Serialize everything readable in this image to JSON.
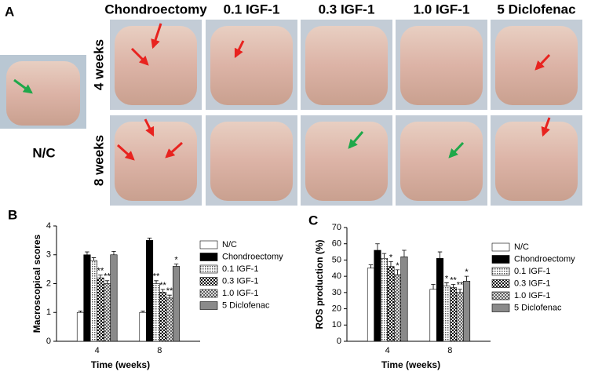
{
  "panel_a": {
    "label": "A",
    "columns": [
      "Chondroectomy",
      "0.1 IGF-1",
      "0.3 IGF-1",
      "1.0 IGF-1",
      "5 Diclofenac"
    ],
    "rows": [
      "4 weeks",
      "8 weeks"
    ],
    "control": "N/C"
  },
  "chart_data": [
    {
      "type": "bar",
      "panel_label": "B",
      "ylabel": "Macroscopical scores",
      "xlabel": "Time (weeks)",
      "categories": [
        "4",
        "8"
      ],
      "ylim": [
        0,
        4
      ],
      "yticks": [
        0,
        1,
        2,
        3,
        4
      ],
      "grid": false,
      "series": [
        {
          "name": "N/C",
          "color": "#ffffff",
          "values": [
            1.0,
            1.0
          ],
          "errors": [
            0.05,
            0.05
          ],
          "significance": [
            null,
            null
          ]
        },
        {
          "name": "Chondroectomy",
          "color": "#000000",
          "values": [
            3.0,
            3.5
          ],
          "errors": [
            0.1,
            0.08
          ],
          "significance": [
            null,
            null
          ]
        },
        {
          "name": "0.1 IGF-1",
          "color": "#cfcfcf",
          "values": [
            2.8,
            2.0
          ],
          "errors": [
            0.1,
            0.1
          ],
          "significance": [
            null,
            "**"
          ]
        },
        {
          "name": "0.3 IGF-1",
          "color": "#7a7a7a",
          "values": [
            2.2,
            1.7
          ],
          "errors": [
            0.1,
            0.1
          ],
          "significance": [
            "**",
            "**"
          ]
        },
        {
          "name": "1.0 IGF-1",
          "color": "#b0b0b0",
          "values": [
            2.0,
            1.5
          ],
          "errors": [
            0.1,
            0.1
          ],
          "significance": [
            "**",
            "**"
          ]
        },
        {
          "name": "5 Diclofenac",
          "color": "#8a8a8a",
          "values": [
            3.0,
            2.6
          ],
          "errors": [
            0.12,
            0.08
          ],
          "significance": [
            null,
            "*"
          ]
        }
      ]
    },
    {
      "type": "bar",
      "panel_label": "C",
      "ylabel": "ROS production (%)",
      "xlabel": "Time (weeks)",
      "categories": [
        "4",
        "8"
      ],
      "ylim": [
        0,
        70
      ],
      "yticks": [
        0,
        10,
        20,
        30,
        40,
        50,
        60,
        70
      ],
      "grid": false,
      "series": [
        {
          "name": "N/C",
          "color": "#ffffff",
          "values": [
            45,
            32
          ],
          "errors": [
            2,
            3
          ],
          "significance": [
            null,
            null
          ]
        },
        {
          "name": "Chondroectomy",
          "color": "#000000",
          "values": [
            56,
            51
          ],
          "errors": [
            4,
            4
          ],
          "significance": [
            null,
            null
          ]
        },
        {
          "name": "0.1 IGF-1",
          "color": "#cfcfcf",
          "values": [
            51,
            34
          ],
          "errors": [
            3,
            2
          ],
          "significance": [
            null,
            "*"
          ]
        },
        {
          "name": "0.3 IGF-1",
          "color": "#7a7a7a",
          "values": [
            46,
            33
          ],
          "errors": [
            3,
            2
          ],
          "significance": [
            "*",
            "**"
          ]
        },
        {
          "name": "1.0 IGF-1",
          "color": "#b0b0b0",
          "values": [
            41,
            30
          ],
          "errors": [
            3,
            2
          ],
          "significance": [
            "*",
            "**"
          ]
        },
        {
          "name": "5 Diclofenac",
          "color": "#8a8a8a",
          "values": [
            52,
            37
          ],
          "errors": [
            4,
            3
          ],
          "significance": [
            null,
            "*"
          ]
        }
      ]
    }
  ]
}
